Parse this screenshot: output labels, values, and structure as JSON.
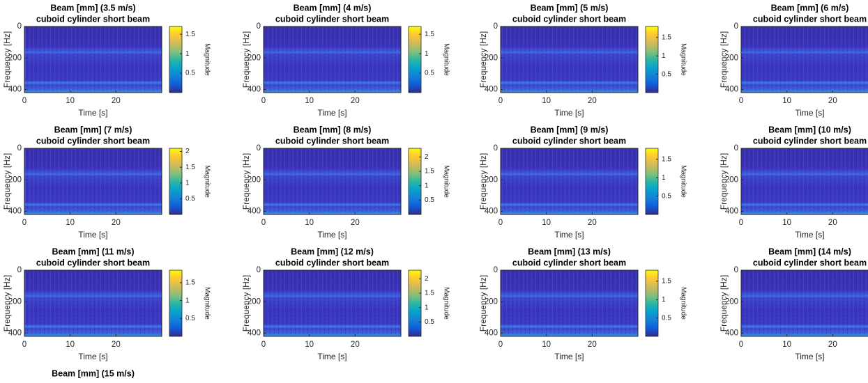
{
  "chart_data": [
    {
      "type": "spectrogram",
      "title": "Beam [mm] (3.5 m/s)",
      "subtitle": "cuboid cylinder short beam",
      "x_label": "Time [s]",
      "y_label": "Frequency [Hz]",
      "xlim": [
        0,
        30
      ],
      "ylim": [
        0,
        420
      ],
      "y_reversed": true,
      "xticks": [
        0,
        10,
        20
      ],
      "yticks": [
        0,
        200,
        400
      ],
      "colorbar": {
        "label": "Magnitude",
        "lim": [
          0,
          1.7
        ],
        "ticks": [
          0.5,
          1,
          1.5
        ]
      }
    },
    {
      "type": "spectrogram",
      "title": "Beam [mm] (4 m/s)",
      "subtitle": "cuboid cylinder short beam",
      "x_label": "Time [s]",
      "y_label": "Frequency [Hz]",
      "xlim": [
        0,
        30
      ],
      "ylim": [
        0,
        420
      ],
      "y_reversed": true,
      "xticks": [
        0,
        10,
        20
      ],
      "yticks": [
        0,
        200,
        400
      ],
      "colorbar": {
        "label": "Magnitude",
        "lim": [
          0,
          1.7
        ],
        "ticks": [
          0.5,
          1,
          1.5
        ]
      }
    },
    {
      "type": "spectrogram",
      "title": "Beam [mm] (5 m/s)",
      "subtitle": "cuboid cylinder short beam",
      "x_label": "Time [s]",
      "y_label": "Frequency [Hz]",
      "xlim": [
        0,
        30
      ],
      "ylim": [
        0,
        420
      ],
      "y_reversed": true,
      "xticks": [
        0,
        10,
        20
      ],
      "yticks": [
        0,
        200,
        400
      ],
      "colorbar": {
        "label": "Magnitude",
        "lim": [
          0,
          1.8
        ],
        "ticks": [
          0.5,
          1,
          1.5
        ]
      }
    },
    {
      "type": "spectrogram",
      "title": "Beam [mm] (6 m/s)",
      "subtitle": "cuboid cylinder short beam",
      "x_label": "Time [s]",
      "y_label": "Frequency [Hz]",
      "xlim": [
        0,
        30
      ],
      "ylim": [
        0,
        420
      ],
      "y_reversed": true,
      "xticks": [
        0,
        10,
        20
      ],
      "yticks": [
        0,
        200,
        400
      ]
    },
    {
      "type": "spectrogram",
      "title": "Beam [mm] (7 m/s)",
      "subtitle": "cuboid cylinder short beam",
      "x_label": "Time [s]",
      "y_label": "Frequency [Hz]",
      "xlim": [
        0,
        30
      ],
      "ylim": [
        0,
        420
      ],
      "y_reversed": true,
      "xticks": [
        0,
        10,
        20
      ],
      "yticks": [
        0,
        200,
        400
      ],
      "colorbar": {
        "label": "Magnitude",
        "lim": [
          0,
          2.1
        ],
        "ticks": [
          0.5,
          1,
          1.5,
          2
        ]
      }
    },
    {
      "type": "spectrogram",
      "title": "Beam [mm] (8 m/s)",
      "subtitle": "cuboid cylinder short beam",
      "x_label": "Time [s]",
      "y_label": "Frequency [Hz]",
      "xlim": [
        0,
        30
      ],
      "ylim": [
        0,
        420
      ],
      "y_reversed": true,
      "xticks": [
        0,
        10,
        20
      ],
      "yticks": [
        0,
        200,
        400
      ],
      "colorbar": {
        "label": "Magnitude",
        "lim": [
          0,
          2.3
        ],
        "ticks": [
          0.5,
          1,
          1.5,
          2
        ]
      }
    },
    {
      "type": "spectrogram",
      "title": "Beam [mm] (9 m/s)",
      "subtitle": "cuboid cylinder short beam",
      "x_label": "Time [s]",
      "y_label": "Frequency [Hz]",
      "xlim": [
        0,
        30
      ],
      "ylim": [
        0,
        420
      ],
      "y_reversed": true,
      "xticks": [
        0,
        10,
        20
      ],
      "yticks": [
        0,
        200,
        400
      ],
      "colorbar": {
        "label": "Magnitude",
        "lim": [
          0,
          1.8
        ],
        "ticks": [
          0.5,
          1,
          1.5
        ]
      }
    },
    {
      "type": "spectrogram",
      "title": "Beam [mm] (10 m/s)",
      "subtitle": "cuboid cylinder short beam",
      "x_label": "Time [s]",
      "y_label": "Frequency [Hz]",
      "xlim": [
        0,
        30
      ],
      "ylim": [
        0,
        420
      ],
      "y_reversed": true,
      "xticks": [
        0,
        10,
        20
      ],
      "yticks": [
        0,
        200,
        400
      ]
    },
    {
      "type": "spectrogram",
      "title": "Beam [mm] (11 m/s)",
      "subtitle": "cuboid cylinder short beam",
      "x_label": "Time [s]",
      "y_label": "Frequency [Hz]",
      "xlim": [
        0,
        30
      ],
      "ylim": [
        0,
        420
      ],
      "y_reversed": true,
      "xticks": [
        0,
        10,
        20
      ],
      "yticks": [
        0,
        200,
        400
      ],
      "colorbar": {
        "label": "Magnitude",
        "lim": [
          0,
          1.85
        ],
        "ticks": [
          0.5,
          1,
          1.5
        ]
      }
    },
    {
      "type": "spectrogram",
      "title": "Beam [mm] (12 m/s)",
      "subtitle": "cuboid cylinder short beam",
      "x_label": "Time [s]",
      "y_label": "Frequency [Hz]",
      "xlim": [
        0,
        30
      ],
      "ylim": [
        0,
        420
      ],
      "y_reversed": true,
      "xticks": [
        0,
        10,
        20
      ],
      "yticks": [
        0,
        200,
        400
      ],
      "colorbar": {
        "label": "Magnitude",
        "lim": [
          0,
          2.3
        ],
        "ticks": [
          0.5,
          1,
          1.5,
          2
        ]
      }
    },
    {
      "type": "spectrogram",
      "title": "Beam [mm] (13 m/s)",
      "subtitle": "cuboid cylinder short beam",
      "x_label": "Time [s]",
      "y_label": "Frequency [Hz]",
      "xlim": [
        0,
        30
      ],
      "ylim": [
        0,
        420
      ],
      "y_reversed": true,
      "xticks": [
        0,
        10,
        20
      ],
      "yticks": [
        0,
        200,
        400
      ],
      "colorbar": {
        "label": "Magnitude",
        "lim": [
          0,
          1.8
        ],
        "ticks": [
          0.5,
          1,
          1.5
        ]
      }
    },
    {
      "type": "spectrogram",
      "title": "Beam [mm] (14 m/s)",
      "subtitle": "cuboid cylinder short beam",
      "x_label": "Time [s]",
      "y_label": "Frequency [Hz]",
      "xlim": [
        0,
        30
      ],
      "ylim": [
        0,
        420
      ],
      "y_reversed": true,
      "xticks": [
        0,
        10,
        20
      ],
      "yticks": [
        0,
        200,
        400
      ]
    },
    {
      "type": "spectrogram",
      "title": "Beam [mm] (15 m/s)"
    }
  ]
}
